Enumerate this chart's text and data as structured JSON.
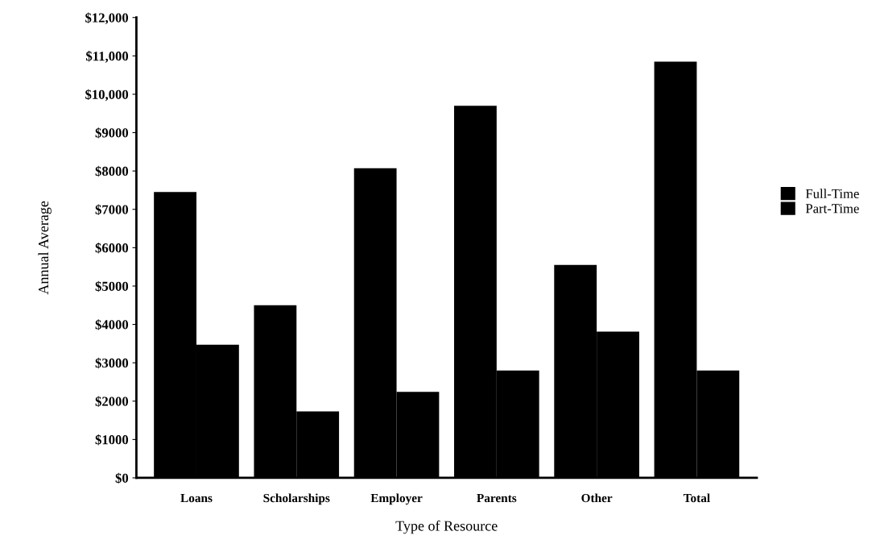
{
  "chart_data": {
    "type": "bar",
    "xlabel": "Type of Resource",
    "ylabel": "Annual Average",
    "categories": [
      "Loans",
      "Scholarships",
      "Employer",
      "Parents",
      "Other",
      "Total"
    ],
    "series": [
      {
        "name": "Full-Time",
        "color": "#000000",
        "values": [
          7450,
          4500,
          8070,
          9700,
          5550,
          10850
        ]
      },
      {
        "name": "Part-Time",
        "color": "#000000",
        "values": [
          3470,
          1730,
          2240,
          2800,
          3810,
          2800
        ]
      }
    ],
    "ylim": [
      0,
      12000
    ],
    "yticks": [
      {
        "value": 0,
        "label": "$0"
      },
      {
        "value": 1000,
        "label": "$1000"
      },
      {
        "value": 2000,
        "label": "$2000"
      },
      {
        "value": 3000,
        "label": "$3000"
      },
      {
        "value": 4000,
        "label": "$4000"
      },
      {
        "value": 5000,
        "label": "$5000"
      },
      {
        "value": 6000,
        "label": "$6000"
      },
      {
        "value": 7000,
        "label": "$7000"
      },
      {
        "value": 8000,
        "label": "$8000"
      },
      {
        "value": 9000,
        "label": "$9000"
      },
      {
        "value": 10000,
        "label": "$10,000"
      },
      {
        "value": 11000,
        "label": "$11,000"
      },
      {
        "value": 12000,
        "label": "$12,000"
      }
    ],
    "grid": false,
    "legend": "right"
  }
}
